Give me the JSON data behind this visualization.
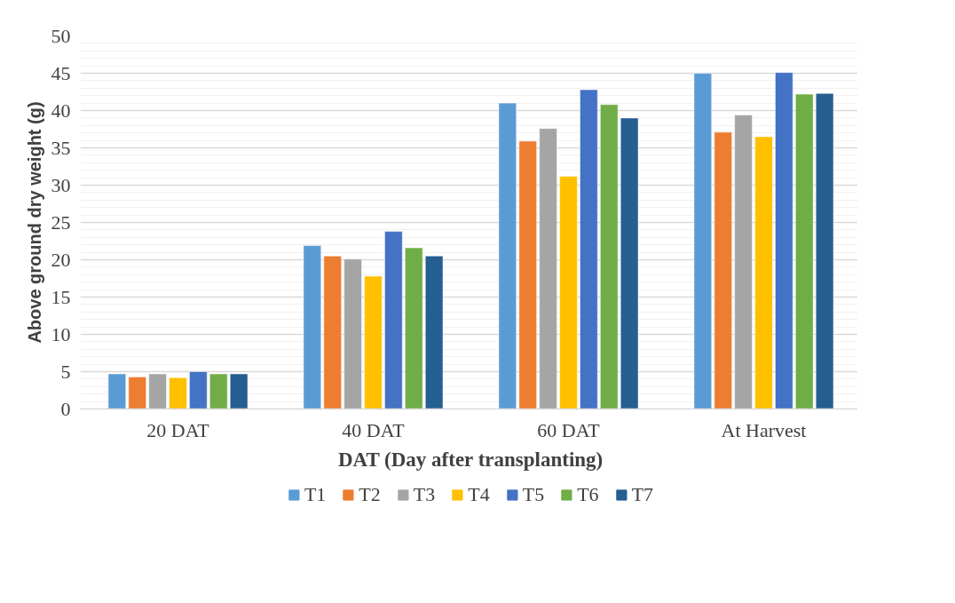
{
  "chart_data": {
    "type": "bar",
    "xlabel": "DAT (Day after transplanting)",
    "ylabel": "Above ground dry weight (g)",
    "categories": [
      "20 DAT",
      "40 DAT",
      "60 DAT",
      "At Harvest"
    ],
    "series": [
      {
        "name": "T1",
        "color": "#5b9bd5",
        "values": [
          4.7,
          21.9,
          41.0,
          45.0
        ]
      },
      {
        "name": "T2",
        "color": "#ed7d31",
        "values": [
          4.3,
          20.5,
          35.9,
          37.1
        ]
      },
      {
        "name": "T3",
        "color": "#a5a5a5",
        "values": [
          4.7,
          20.1,
          37.6,
          39.4
        ]
      },
      {
        "name": "T4",
        "color": "#ffc000",
        "values": [
          4.2,
          17.8,
          31.2,
          36.5
        ]
      },
      {
        "name": "T5",
        "color": "#4472c4",
        "values": [
          5.0,
          23.8,
          42.8,
          45.1
        ]
      },
      {
        "name": "T6",
        "color": "#70ad47",
        "values": [
          4.7,
          21.6,
          40.8,
          42.2
        ]
      },
      {
        "name": "T7",
        "color": "#255e91",
        "values": [
          4.7,
          20.5,
          39.0,
          42.3
        ]
      }
    ],
    "ylim": [
      0,
      50
    ],
    "yticks": [
      0,
      5,
      10,
      15,
      20,
      25,
      30,
      35,
      40,
      45,
      50
    ],
    "grid": "y",
    "legend": "bottom"
  }
}
